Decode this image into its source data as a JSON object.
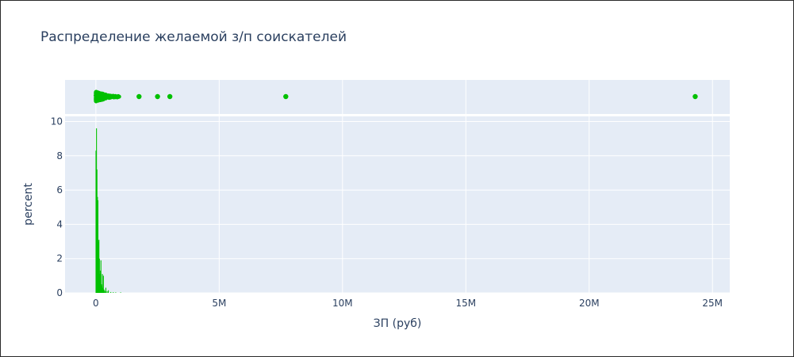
{
  "chart_data": {
    "type": "histogram",
    "title": "Распределение желаемой з/п соискателей",
    "xlabel": "ЗП (руб)",
    "ylabel": "percent",
    "xlim": [
      -1250000,
      25700000
    ],
    "ylim": [
      0,
      10.3
    ],
    "x_ticks": [
      {
        "value": 0,
        "label": "0"
      },
      {
        "value": 5000000,
        "label": "5M"
      },
      {
        "value": 10000000,
        "label": "10M"
      },
      {
        "value": 15000000,
        "label": "15M"
      },
      {
        "value": 20000000,
        "label": "20M"
      },
      {
        "value": 25000000,
        "label": "25M"
      }
    ],
    "y_ticks": [
      {
        "value": 0,
        "label": "0"
      },
      {
        "value": 2,
        "label": "2"
      },
      {
        "value": 4,
        "label": "4"
      },
      {
        "value": 6,
        "label": "6"
      },
      {
        "value": 8,
        "label": "8"
      },
      {
        "value": 10,
        "label": "10"
      }
    ],
    "color": "#00c000",
    "grid": true,
    "legend": "none",
    "histogram": {
      "bins": [
        {
          "x": 0,
          "y": 8.3
        },
        {
          "x": 20000,
          "y": 9.6
        },
        {
          "x": 40000,
          "y": 7.2
        },
        {
          "x": 60000,
          "y": 5.6
        },
        {
          "x": 80000,
          "y": 5.4
        },
        {
          "x": 100000,
          "y": 3.0
        },
        {
          "x": 120000,
          "y": 3.1
        },
        {
          "x": 140000,
          "y": 2.0
        },
        {
          "x": 160000,
          "y": 1.1
        },
        {
          "x": 180000,
          "y": 1.3
        },
        {
          "x": 200000,
          "y": 1.9
        },
        {
          "x": 220000,
          "y": 0.5
        },
        {
          "x": 240000,
          "y": 0.4
        },
        {
          "x": 260000,
          "y": 1.1
        },
        {
          "x": 280000,
          "y": 0.3
        },
        {
          "x": 300000,
          "y": 1.0
        },
        {
          "x": 320000,
          "y": 0.2
        },
        {
          "x": 340000,
          "y": 0.15
        },
        {
          "x": 360000,
          "y": 0.1
        },
        {
          "x": 400000,
          "y": 0.3
        },
        {
          "x": 450000,
          "y": 0.1
        },
        {
          "x": 500000,
          "y": 0.15
        },
        {
          "x": 600000,
          "y": 0.05
        },
        {
          "x": 700000,
          "y": 0.04
        },
        {
          "x": 800000,
          "y": 0.03
        },
        {
          "x": 1000000,
          "y": 0.03
        }
      ]
    },
    "strip": {
      "dense_range": [
        0,
        1000000
      ],
      "outliers": [
        1750000,
        2500000,
        3000000,
        7700000,
        24300000
      ]
    }
  }
}
